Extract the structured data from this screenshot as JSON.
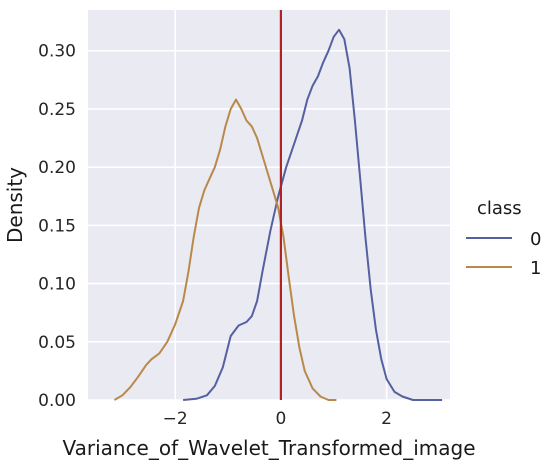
{
  "chart_data": {
    "type": "line",
    "subtype": "kde",
    "xlabel": "Variance_of_Wavelet_Transformed_image",
    "ylabel": "Density",
    "xlim": [
      -3.65,
      3.2
    ],
    "ylim": [
      0,
      0.335
    ],
    "x_ticks": [
      -2,
      0,
      2
    ],
    "x_tick_labels": [
      "−2",
      "0",
      "2"
    ],
    "y_ticks": [
      0.0,
      0.05,
      0.1,
      0.15,
      0.2,
      0.25,
      0.3
    ],
    "y_tick_labels": [
      "0.00",
      "0.05",
      "0.10",
      "0.15",
      "0.20",
      "0.25",
      "0.30"
    ],
    "grid": true,
    "background": "#EAEAF2",
    "legend": {
      "title": "class",
      "position": "right"
    },
    "vline": {
      "x": 0.0,
      "color": "#B22222"
    },
    "series": [
      {
        "name": "0",
        "color": "#5560A0",
        "points": [
          [
            -1.85,
            0.0
          ],
          [
            -1.6,
            0.001
          ],
          [
            -1.4,
            0.004
          ],
          [
            -1.25,
            0.012
          ],
          [
            -1.1,
            0.028
          ],
          [
            -0.95,
            0.055
          ],
          [
            -0.8,
            0.064
          ],
          [
            -0.65,
            0.067
          ],
          [
            -0.55,
            0.072
          ],
          [
            -0.45,
            0.085
          ],
          [
            -0.35,
            0.11
          ],
          [
            -0.2,
            0.145
          ],
          [
            -0.05,
            0.175
          ],
          [
            0.1,
            0.2
          ],
          [
            0.25,
            0.22
          ],
          [
            0.4,
            0.24
          ],
          [
            0.5,
            0.258
          ],
          [
            0.6,
            0.27
          ],
          [
            0.7,
            0.278
          ],
          [
            0.8,
            0.29
          ],
          [
            0.9,
            0.3
          ],
          [
            1.0,
            0.312
          ],
          [
            1.1,
            0.318
          ],
          [
            1.2,
            0.31
          ],
          [
            1.3,
            0.285
          ],
          [
            1.4,
            0.24
          ],
          [
            1.5,
            0.19
          ],
          [
            1.6,
            0.14
          ],
          [
            1.7,
            0.095
          ],
          [
            1.8,
            0.06
          ],
          [
            1.9,
            0.035
          ],
          [
            2.0,
            0.018
          ],
          [
            2.15,
            0.007
          ],
          [
            2.3,
            0.003
          ],
          [
            2.5,
            0.0
          ],
          [
            3.05,
            0.0
          ]
        ]
      },
      {
        "name": "1",
        "color": "#B8894A",
        "points": [
          [
            -3.15,
            0.0
          ],
          [
            -3.0,
            0.004
          ],
          [
            -2.85,
            0.011
          ],
          [
            -2.7,
            0.02
          ],
          [
            -2.55,
            0.03
          ],
          [
            -2.45,
            0.035
          ],
          [
            -2.3,
            0.04
          ],
          [
            -2.15,
            0.05
          ],
          [
            -2.0,
            0.065
          ],
          [
            -1.85,
            0.085
          ],
          [
            -1.75,
            0.11
          ],
          [
            -1.65,
            0.14
          ],
          [
            -1.55,
            0.165
          ],
          [
            -1.45,
            0.18
          ],
          [
            -1.35,
            0.19
          ],
          [
            -1.25,
            0.2
          ],
          [
            -1.15,
            0.215
          ],
          [
            -1.05,
            0.235
          ],
          [
            -0.95,
            0.25
          ],
          [
            -0.85,
            0.258
          ],
          [
            -0.75,
            0.25
          ],
          [
            -0.65,
            0.24
          ],
          [
            -0.55,
            0.235
          ],
          [
            -0.45,
            0.225
          ],
          [
            -0.35,
            0.21
          ],
          [
            -0.25,
            0.195
          ],
          [
            -0.15,
            0.18
          ],
          [
            -0.05,
            0.165
          ],
          [
            0.05,
            0.14
          ],
          [
            0.15,
            0.105
          ],
          [
            0.25,
            0.072
          ],
          [
            0.35,
            0.045
          ],
          [
            0.45,
            0.025
          ],
          [
            0.6,
            0.01
          ],
          [
            0.75,
            0.003
          ],
          [
            0.9,
            0.0
          ],
          [
            1.05,
            0.0
          ]
        ]
      }
    ]
  }
}
